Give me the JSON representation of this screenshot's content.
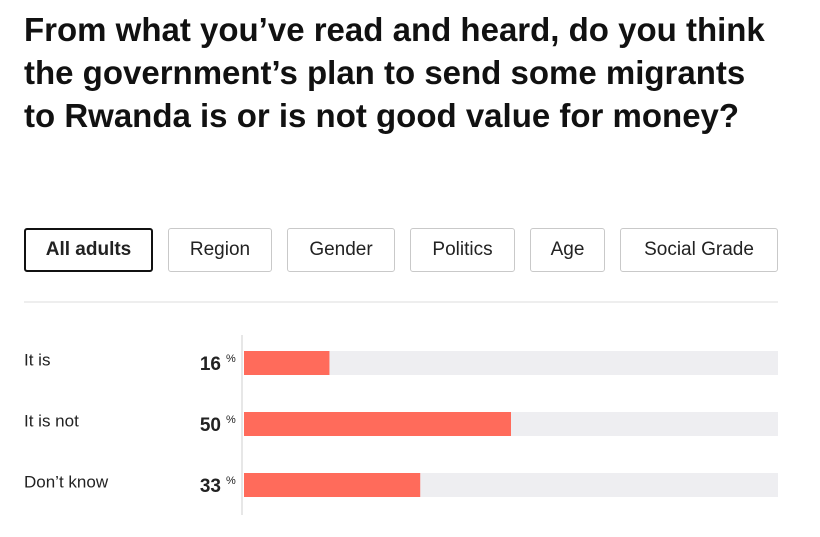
{
  "tabs": [
    "All adults",
    "Region",
    "Gender",
    "Politics",
    "Age",
    "Social Grade"
  ],
  "selected_tab": 0,
  "chart_data": {
    "type": "bar",
    "orientation": "horizontal",
    "title": "From what you’ve read and heard, do you think the government’s plan to send some migrants to Rwanda is or is not good value for money?",
    "categories": [
      "It is",
      "It is not",
      "Don’t know"
    ],
    "values": [
      16,
      50,
      33
    ],
    "unit": "%",
    "color": "#ff6b5b",
    "track_color": "#eeeef1",
    "xlim": [
      0,
      100
    ]
  }
}
